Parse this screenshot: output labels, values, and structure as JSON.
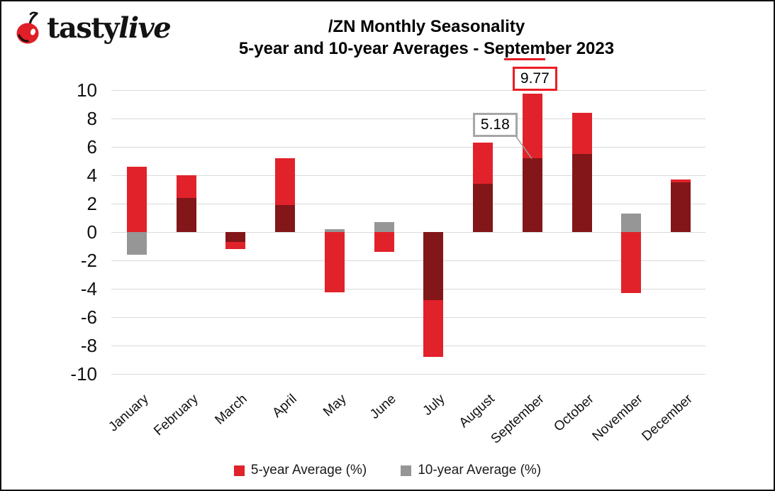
{
  "logo": {
    "brand_tasty": "tasty",
    "brand_live": "live"
  },
  "title": {
    "line1": "/ZN Monthly Seasonality",
    "line2": "5-year and 10-year Averages - September 2023",
    "misspell_underline_part": "ptem"
  },
  "chart_data": {
    "type": "bar",
    "title": "/ZN Monthly Seasonality 5-year and 10-year Averages - September 2023",
    "categories": [
      "January",
      "February",
      "March",
      "April",
      "May",
      "June",
      "July",
      "August",
      "September",
      "October",
      "November",
      "December"
    ],
    "series": [
      {
        "name": "5-year Average (%)",
        "color": "#e1222a",
        "values": [
          4.6,
          4.0,
          -1.2,
          5.2,
          -4.25,
          -1.4,
          -8.8,
          6.3,
          9.77,
          8.4,
          -4.3,
          3.7
        ]
      },
      {
        "name": "10-year Average (%)",
        "color": "#969696",
        "values": [
          -1.6,
          2.4,
          -0.7,
          1.9,
          0.2,
          0.7,
          -4.8,
          3.4,
          5.18,
          5.5,
          1.3,
          3.5
        ]
      }
    ],
    "overlap_color": "#821619",
    "bar_style": "overlapping",
    "y_ticks": [
      10,
      8,
      6,
      4,
      2,
      0,
      -2,
      -4,
      -6,
      -8,
      -10
    ],
    "ylim": [
      -10,
      10
    ],
    "grid": true,
    "gridline_color": "#d9d9d9",
    "legend_position": "bottom",
    "annotations": [
      {
        "text": "9.77",
        "month": "September",
        "series_index": 0,
        "border_color": "#ed1c24",
        "leader": false
      },
      {
        "text": "5.18",
        "month": "September",
        "series_index": 1,
        "border_color": "#a6a6a6",
        "leader": true
      }
    ],
    "leader_line_color": "#9e9e9e"
  }
}
